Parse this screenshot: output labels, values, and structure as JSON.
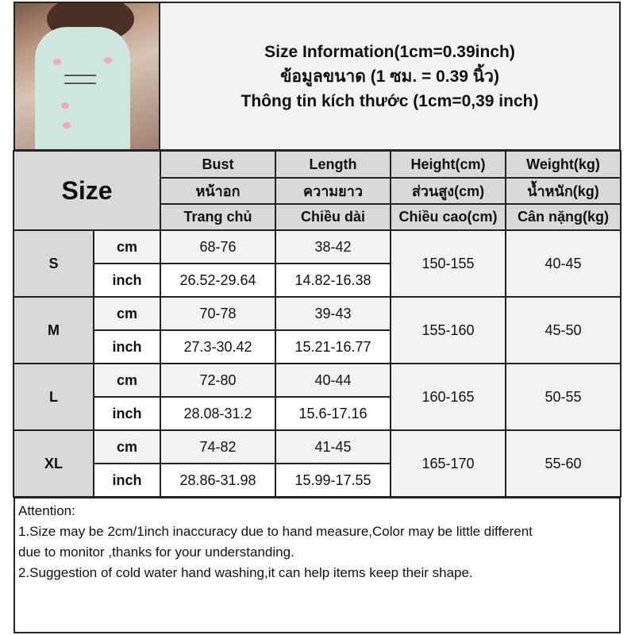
{
  "title": {
    "line_en": "Size Information(1cm=0.39inch)",
    "line_th": "ข้อมูลขนาด (1 ซม. = 0.39 นิ้ว)",
    "line_vi": "Thông tin kích thước (1cm=0,39 inch)"
  },
  "header": {
    "size_label": "Size",
    "columns": [
      {
        "en": "Bust",
        "th": "หน้าอก",
        "vi": "Trang chủ"
      },
      {
        "en": "Length",
        "th": "ความยาว",
        "vi": "Chiều dài"
      },
      {
        "en": "Height(cm)",
        "th": "ส่วนสูง(cm)",
        "vi": "Chiều cao(cm)"
      },
      {
        "en": "Weight(kg)",
        "th": "น้ำหนัก(kg)",
        "vi": "Cân nặng(kg)"
      }
    ]
  },
  "rows": [
    {
      "size": "S",
      "cm_label": "cm",
      "inch_label": "inch",
      "bust_cm": "68-76",
      "length_cm": "38-42",
      "bust_inch": "26.52-29.64",
      "length_inch": "14.82-16.38",
      "height": "150-155",
      "weight": "40-45"
    },
    {
      "size": "M",
      "cm_label": "cm",
      "inch_label": "inch",
      "bust_cm": "70-78",
      "length_cm": "39-43",
      "bust_inch": "27.3-30.42",
      "length_inch": "15.21-16.77",
      "height": "155-160",
      "weight": "45-50"
    },
    {
      "size": "L",
      "cm_label": "cm",
      "inch_label": "inch",
      "bust_cm": "72-80",
      "length_cm": "40-44",
      "bust_inch": "28.08-31.2",
      "length_inch": "15.6-17.16",
      "height": "160-165",
      "weight": "50-55"
    },
    {
      "size": "XL",
      "cm_label": "cm",
      "inch_label": "inch",
      "bust_cm": "74-82",
      "length_cm": "41-45",
      "bust_inch": "28.86-31.98",
      "length_inch": "15.99-17.55",
      "height": "165-170",
      "weight": "55-60"
    }
  ],
  "attention": {
    "heading": "Attention:",
    "lines": [
      "1.Size may be 2cm/1inch inaccuracy due to hand measure,Color may be little different",
      "due to monitor ,thanks for your understanding.",
      "2.Suggestion of cold water hand washing,it can help items keep their shape."
    ]
  }
}
